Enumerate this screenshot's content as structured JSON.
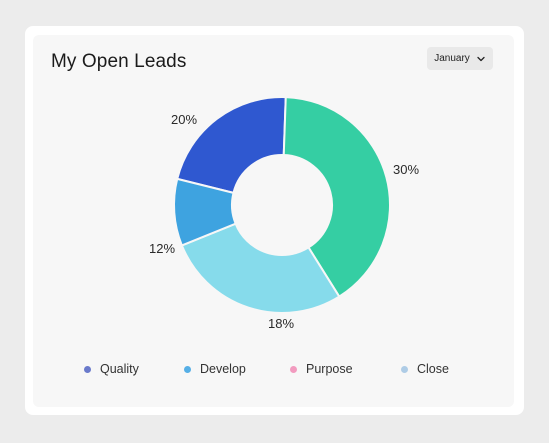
{
  "widget": {
    "title": "My Open Leads",
    "month_select": {
      "value": "January",
      "icon": "chevron-down-icon"
    }
  },
  "legend": [
    {
      "label": "Quality",
      "color": "#6a7acb"
    },
    {
      "label": "Develop",
      "color": "#56afe6"
    },
    {
      "label": "Purpose",
      "color": "#f29bbf"
    },
    {
      "label": "Close",
      "color": "#aecce6"
    }
  ],
  "chart_data": {
    "type": "pie",
    "donut": true,
    "slices": [
      {
        "label": "20%",
        "value": 20,
        "color": "#2f58d0"
      },
      {
        "label": "30%",
        "value": 30,
        "color": "#35cea3"
      },
      {
        "label": "18%",
        "value": 18,
        "color": "#86dbeb"
      },
      {
        "label": "12%",
        "value": 12,
        "color": "#3ea3e0"
      }
    ]
  }
}
